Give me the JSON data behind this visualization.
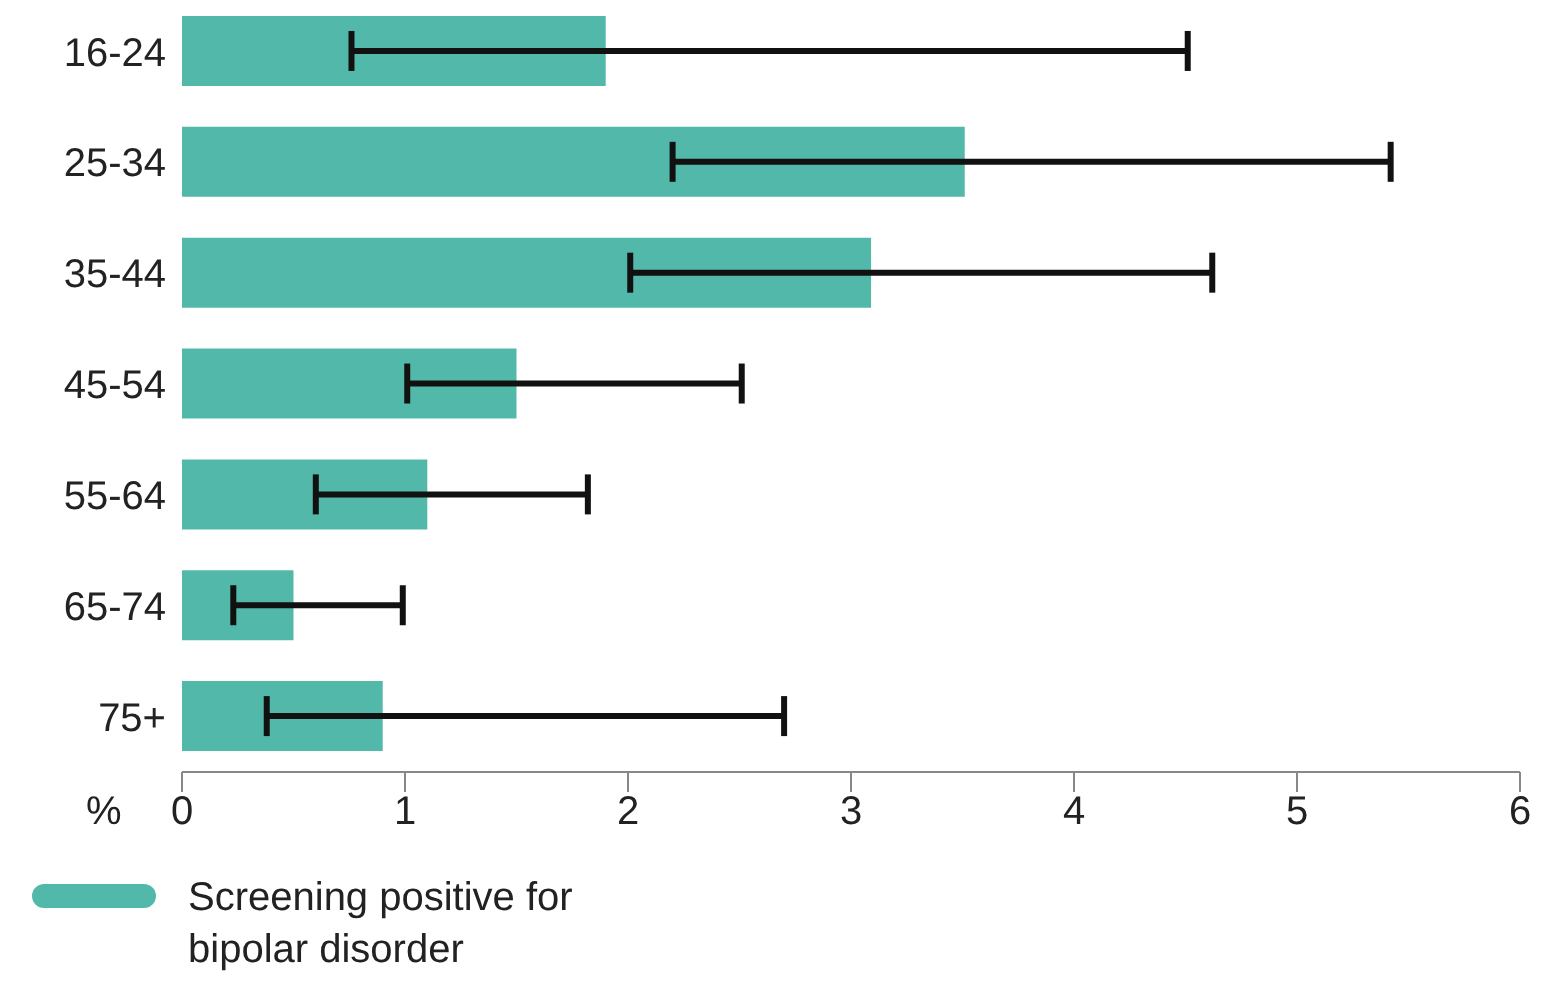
{
  "chart_data": {
    "type": "bar",
    "orientation": "horizontal",
    "xlabel": "%",
    "categories": [
      "16-24",
      "25-34",
      "35-44",
      "45-54",
      "55-64",
      "65-74",
      "75+"
    ],
    "series": [
      {
        "name": "Screening positive for bipolar disorder",
        "color": "#52b9aa",
        "values": [
          1.9,
          3.51,
          3.09,
          1.5,
          1.1,
          0.5,
          0.9
        ],
        "errors": [
          [
            0.76,
            4.51
          ],
          [
            2.2,
            5.42
          ],
          [
            2.01,
            4.62
          ],
          [
            1.01,
            2.51
          ],
          [
            0.6,
            1.82
          ],
          [
            0.23,
            0.99
          ],
          [
            0.38,
            2.7
          ]
        ]
      }
    ],
    "xlim": [
      0,
      6
    ],
    "xticks": [
      0,
      1,
      2,
      3,
      4,
      5,
      6
    ],
    "legend": "bottom left"
  }
}
